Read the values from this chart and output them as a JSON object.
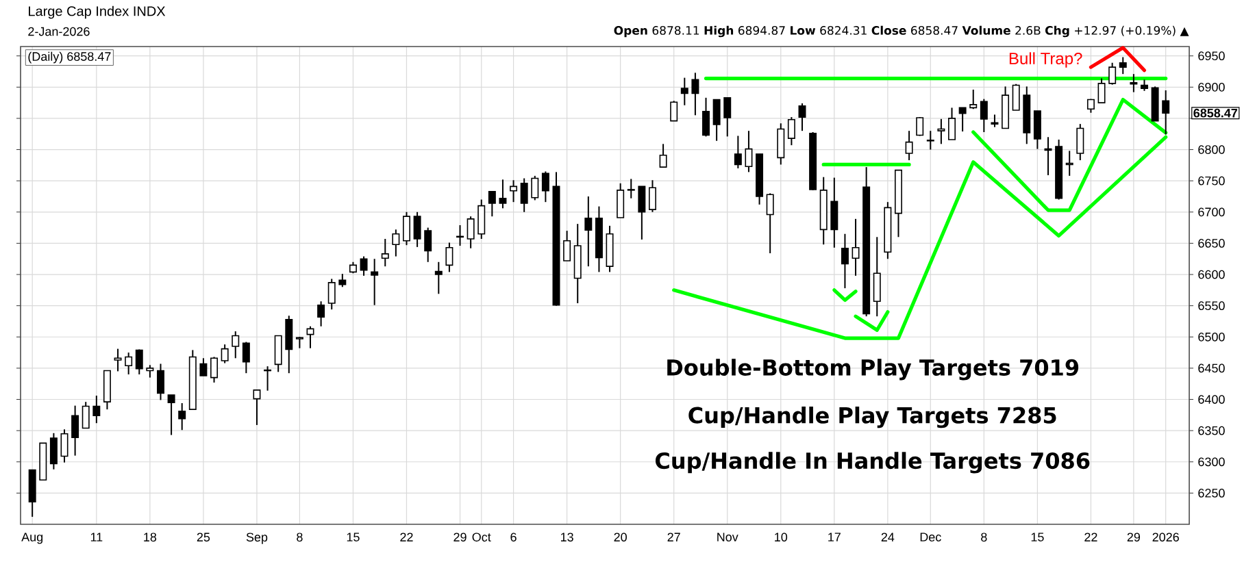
{
  "chart_data": {
    "type": "candlestick",
    "title": "Large Cap Index INDX",
    "subtitle": "2-Jan-2026",
    "annotations": [
      "**Open** 6878.11  **High** 6894.87  **Low** 6824.31  **Close** 6858.47  **Volume** 2.6B  **Chg** +12.97 (+0.19%) ▲",
      "(Daily) 6858.47",
      "6858.47",
      "Bull Trap?",
      "Double-Bottom Play Targets 7019",
      "Cup/Handle Play Targets 7285",
      "Cup/Handle In Handle Targets 7086"
    ],
    "categories": [
      "Aug",
      null,
      null,
      null,
      null,
      null,
      "11",
      null,
      null,
      null,
      null,
      "18",
      null,
      null,
      null,
      null,
      "25",
      null,
      null,
      null,
      null,
      "Sep",
      null,
      null,
      null,
      "8",
      null,
      null,
      null,
      null,
      "15",
      null,
      null,
      null,
      null,
      "22",
      null,
      null,
      null,
      null,
      "29",
      null,
      "Oct",
      null,
      null,
      "6",
      null,
      null,
      null,
      null,
      "13",
      null,
      null,
      null,
      null,
      "20",
      null,
      null,
      null,
      null,
      "27",
      null,
      null,
      null,
      null,
      "Nov",
      null,
      null,
      null,
      null,
      "10",
      null,
      null,
      null,
      null,
      "17",
      null,
      null,
      null,
      null,
      "24",
      null,
      null,
      null,
      "Dec",
      null,
      null,
      null,
      null,
      "8",
      null,
      null,
      null,
      null,
      "15",
      null,
      null,
      null,
      null,
      "22",
      null,
      null,
      null,
      "29",
      null,
      null,
      "2026"
    ],
    "color": "#000000",
    "ohlc": [
      [
        6287,
        6287,
        6212,
        6236
      ],
      [
        6271,
        6330,
        6271,
        6330
      ],
      [
        6338,
        6346,
        6288,
        6297
      ],
      [
        6309,
        6352,
        6299,
        6345
      ],
      [
        6374,
        6390,
        6310,
        6339
      ],
      [
        6354,
        6396,
        6354,
        6389
      ],
      [
        6389,
        6406,
        6362,
        6374
      ],
      [
        6396,
        6446,
        6384,
        6446
      ],
      [
        6463,
        6481,
        6445,
        6466
      ],
      [
        6454,
        6475,
        6440,
        6468
      ],
      [
        6479,
        6480,
        6440,
        6449
      ],
      [
        6446,
        6455,
        6435,
        6450
      ],
      [
        6446,
        6457,
        6399,
        6410
      ],
      [
        6407,
        6407,
        6343,
        6395
      ],
      [
        6381,
        6394,
        6351,
        6369
      ],
      [
        6384,
        6479,
        6384,
        6468
      ],
      [
        6457,
        6466,
        6438,
        6438
      ],
      [
        6435,
        6468,
        6427,
        6466
      ],
      [
        6462,
        6488,
        6458,
        6481
      ],
      [
        6485,
        6509,
        6466,
        6502
      ],
      [
        6490,
        6492,
        6442,
        6460
      ],
      [
        6401,
        6415,
        6359,
        6415
      ],
      [
        6446,
        6453,
        6414,
        6447
      ],
      [
        6456,
        6502,
        6444,
        6502
      ],
      [
        6528,
        6534,
        6442,
        6480
      ],
      [
        6497,
        6500,
        6482,
        6499
      ],
      [
        6504,
        6517,
        6482,
        6513
      ],
      [
        6551,
        6557,
        6517,
        6532
      ],
      [
        6554,
        6593,
        6544,
        6587
      ],
      [
        6591,
        6601,
        6580,
        6584
      ],
      [
        6604,
        6620,
        6602,
        6615
      ],
      [
        6625,
        6629,
        6598,
        6607
      ],
      [
        6604,
        6625,
        6551,
        6599
      ],
      [
        6626,
        6657,
        6613,
        6633
      ],
      [
        6648,
        6672,
        6629,
        6665
      ],
      [
        6654,
        6700,
        6647,
        6693
      ],
      [
        6693,
        6700,
        6644,
        6657
      ],
      [
        6670,
        6675,
        6620,
        6638
      ],
      [
        6605,
        6620,
        6569,
        6600
      ],
      [
        6615,
        6651,
        6604,
        6643
      ],
      [
        6660,
        6679,
        6646,
        6661
      ],
      [
        6657,
        6693,
        6642,
        6689
      ],
      [
        6665,
        6720,
        6657,
        6710
      ],
      [
        6733,
        6733,
        6693,
        6714
      ],
      [
        6722,
        6752,
        6706,
        6714
      ],
      [
        6734,
        6751,
        6716,
        6741
      ],
      [
        6746,
        6754,
        6700,
        6714
      ],
      [
        6723,
        6758,
        6719,
        6754
      ],
      [
        6762,
        6765,
        6716,
        6734
      ],
      [
        6741,
        6764,
        6550,
        6551
      ],
      [
        6622,
        6670,
        6622,
        6654
      ],
      [
        6594,
        6681,
        6554,
        6646
      ],
      [
        6690,
        6725,
        6613,
        6671
      ],
      [
        6690,
        6709,
        6604,
        6627
      ],
      [
        6613,
        6678,
        6604,
        6665
      ],
      [
        6691,
        6746,
        6691,
        6735
      ],
      [
        6735,
        6753,
        6722,
        6736
      ],
      [
        6741,
        6741,
        6656,
        6700
      ],
      [
        6704,
        6751,
        6700,
        6739
      ],
      [
        6772,
        6809,
        6772,
        6791
      ],
      [
        6846,
        6878,
        6846,
        6876
      ],
      [
        6898,
        6915,
        6871,
        6890
      ],
      [
        6912,
        6923,
        6855,
        6890
      ],
      [
        6861,
        6883,
        6821,
        6823
      ],
      [
        6880,
        6880,
        6814,
        6840
      ],
      [
        6883,
        6883,
        6821,
        6851
      ],
      [
        6793,
        6822,
        6770,
        6776
      ],
      [
        6773,
        6830,
        6764,
        6801
      ],
      [
        6793,
        6793,
        6712,
        6725
      ],
      [
        6696,
        6730,
        6634,
        6728
      ],
      [
        6787,
        6842,
        6776,
        6833
      ],
      [
        6818,
        6852,
        6807,
        6848
      ],
      [
        6870,
        6874,
        6830,
        6852
      ],
      [
        6826,
        6828,
        6735,
        6736
      ],
      [
        6672,
        6756,
        6648,
        6735
      ],
      [
        6717,
        6755,
        6643,
        6672
      ],
      [
        6642,
        6665,
        6578,
        6617
      ],
      [
        6626,
        6689,
        6598,
        6643
      ],
      [
        6740,
        6772,
        6533,
        6537
      ],
      [
        6557,
        6660,
        6533,
        6602
      ],
      [
        6636,
        6716,
        6625,
        6707
      ],
      [
        6698,
        6767,
        6660,
        6767
      ],
      [
        6794,
        6830,
        6783,
        6812
      ],
      [
        6823,
        6852,
        6822,
        6851
      ],
      [
        6815,
        6830,
        6800,
        6814
      ],
      [
        6830,
        6849,
        6809,
        6833
      ],
      [
        6816,
        6867,
        6816,
        6850
      ],
      [
        6867,
        6867,
        6829,
        6858
      ],
      [
        6867,
        6896,
        6865,
        6872
      ],
      [
        6877,
        6881,
        6828,
        6849
      ],
      [
        6843,
        6856,
        6836,
        6841
      ],
      [
        6834,
        6901,
        6834,
        6887
      ],
      [
        6863,
        6905,
        6863,
        6903
      ],
      [
        6887,
        6901,
        6809,
        6827
      ],
      [
        6862,
        6862,
        6801,
        6817
      ],
      [
        6801,
        6820,
        6759,
        6799
      ],
      [
        6805,
        6816,
        6720,
        6722
      ],
      [
        6776,
        6798,
        6758,
        6778
      ],
      [
        6794,
        6841,
        6783,
        6834
      ],
      [
        6865,
        6881,
        6859,
        6880
      ],
      [
        6875,
        6914,
        6875,
        6906
      ],
      [
        6906,
        6939,
        6904,
        6932
      ],
      [
        6939,
        6948,
        6921,
        6932
      ],
      [
        6907,
        6921,
        6892,
        6905
      ],
      [
        6903,
        6912,
        6894,
        6898
      ],
      [
        6899,
        6901,
        6846,
        6846
      ],
      [
        6878.11,
        6894.87,
        6824.31,
        6858.47
      ]
    ],
    "series": [
      {
        "type": "line",
        "color": "#00ff00",
        "values": [
          null,
          null,
          null,
          null,
          null,
          null,
          null,
          null,
          null,
          null,
          null,
          null,
          null,
          null,
          null,
          null,
          null,
          null,
          null,
          null,
          null,
          null,
          null,
          null,
          null,
          null,
          null,
          null,
          null,
          null,
          null,
          null,
          null,
          null,
          null,
          null,
          null,
          null,
          null,
          null,
          null,
          null,
          null,
          null,
          null,
          null,
          null,
          null,
          null,
          null,
          null,
          null,
          null,
          null,
          null,
          null,
          null,
          null,
          null,
          null,
          null,
          null,
          null,
          6914,
          null,
          null,
          null,
          null,
          null,
          null,
          null,
          null,
          null,
          null,
          null,
          null,
          null,
          null,
          null,
          null,
          null,
          null,
          null,
          null,
          null,
          null,
          null,
          null,
          null,
          null,
          null,
          null,
          null,
          null,
          null,
          null,
          null,
          null,
          null,
          null,
          null,
          null,
          null,
          null,
          null,
          null,
          6914
        ]
      },
      {
        "type": "line",
        "color": "#00ff00",
        "values": [
          null,
          null,
          null,
          null,
          null,
          null,
          null,
          null,
          null,
          null,
          null,
          null,
          null,
          null,
          null,
          null,
          null,
          null,
          null,
          null,
          null,
          null,
          null,
          null,
          null,
          null,
          null,
          null,
          null,
          null,
          null,
          null,
          null,
          null,
          null,
          null,
          null,
          null,
          null,
          null,
          null,
          null,
          null,
          null,
          null,
          null,
          null,
          null,
          null,
          null,
          null,
          null,
          null,
          null,
          null,
          null,
          null,
          null,
          null,
          null,
          6575,
          null,
          null,
          null,
          null,
          null,
          null,
          null,
          null,
          null,
          null,
          null,
          null,
          null,
          null,
          null,
          6498,
          null,
          null,
          null,
          null,
          6498,
          null,
          null,
          null,
          null,
          null,
          null,
          6780,
          null,
          null,
          null,
          null,
          null,
          null,
          null,
          6662,
          null,
          null,
          null,
          null,
          null,
          null,
          null,
          null,
          null,
          6820
        ]
      },
      {
        "type": "line",
        "color": "#00ff00",
        "values": [
          null,
          null,
          null,
          null,
          null,
          null,
          null,
          null,
          null,
          null,
          null,
          null,
          null,
          null,
          null,
          null,
          null,
          null,
          null,
          null,
          null,
          null,
          null,
          null,
          null,
          null,
          null,
          null,
          null,
          null,
          null,
          null,
          null,
          null,
          null,
          null,
          null,
          null,
          null,
          null,
          null,
          null,
          null,
          null,
          null,
          null,
          null,
          null,
          null,
          null,
          null,
          null,
          null,
          null,
          null,
          null,
          null,
          null,
          null,
          null,
          null,
          null,
          null,
          null,
          null,
          null,
          null,
          null,
          null,
          null,
          null,
          null,
          null,
          null,
          null,
          null,
          null,
          null,
          null,
          null,
          null,
          null,
          null,
          null,
          null,
          null,
          null,
          null,
          6828,
          null,
          null,
          null,
          null,
          null,
          null,
          6703,
          null,
          6703,
          null,
          null,
          null,
          null,
          6880,
          null,
          null,
          null,
          6827
        ]
      },
      {
        "type": "line",
        "color": "#00ff00",
        "values": [
          null,
          null,
          null,
          null,
          null,
          null,
          null,
          null,
          null,
          null,
          null,
          null,
          null,
          null,
          null,
          null,
          null,
          null,
          null,
          null,
          null,
          null,
          null,
          null,
          null,
          null,
          null,
          null,
          null,
          null,
          null,
          null,
          null,
          null,
          null,
          null,
          null,
          null,
          null,
          null,
          null,
          null,
          null,
          null,
          null,
          null,
          null,
          null,
          null,
          null,
          null,
          null,
          null,
          null,
          null,
          null,
          null,
          null,
          null,
          null,
          null,
          null,
          null,
          null,
          null,
          null,
          null,
          null,
          null,
          null,
          null,
          null,
          null,
          null,
          6776,
          null,
          null,
          null,
          null,
          null,
          null,
          null,
          6776,
          null,
          null,
          null,
          null,
          null,
          null,
          null,
          null,
          null,
          null,
          null,
          null,
          null,
          null,
          null,
          null,
          null,
          null,
          null,
          null,
          null,
          null,
          null,
          null
        ]
      },
      {
        "type": "line",
        "color": "#00ff00",
        "values": [
          null,
          null,
          null,
          null,
          null,
          null,
          null,
          null,
          null,
          null,
          null,
          null,
          null,
          null,
          null,
          null,
          null,
          null,
          null,
          null,
          null,
          null,
          null,
          null,
          null,
          null,
          null,
          null,
          null,
          null,
          null,
          null,
          null,
          null,
          null,
          null,
          null,
          null,
          null,
          null,
          null,
          null,
          null,
          null,
          null,
          null,
          null,
          null,
          null,
          null,
          null,
          null,
          null,
          null,
          null,
          null,
          null,
          null,
          null,
          null,
          null,
          null,
          null,
          null,
          null,
          null,
          null,
          null,
          null,
          null,
          null,
          null,
          null,
          null,
          null,
          6575,
          6559,
          6573,
          null,
          null,
          null,
          null,
          null,
          null,
          null,
          null,
          null,
          null,
          null,
          null,
          null,
          null,
          null,
          null,
          null,
          null,
          null,
          null,
          null,
          null,
          null,
          null,
          null,
          null,
          null,
          null,
          null
        ]
      },
      {
        "type": "line",
        "color": "#00ff00",
        "values": [
          null,
          null,
          null,
          null,
          null,
          null,
          null,
          null,
          null,
          null,
          null,
          null,
          null,
          null,
          null,
          null,
          null,
          null,
          null,
          null,
          null,
          null,
          null,
          null,
          null,
          null,
          null,
          null,
          null,
          null,
          null,
          null,
          null,
          null,
          null,
          null,
          null,
          null,
          null,
          null,
          null,
          null,
          null,
          null,
          null,
          null,
          null,
          null,
          null,
          null,
          null,
          null,
          null,
          null,
          null,
          null,
          null,
          null,
          null,
          null,
          null,
          null,
          null,
          null,
          null,
          null,
          null,
          null,
          null,
          null,
          null,
          null,
          null,
          null,
          null,
          null,
          null,
          6533,
          null,
          6511,
          6540,
          null,
          null,
          null,
          null,
          null,
          null,
          null,
          null,
          null,
          null,
          null,
          null,
          null,
          null,
          null,
          null,
          null,
          null,
          null,
          null,
          null,
          null,
          null,
          null,
          null,
          null
        ]
      },
      {
        "type": "line",
        "color": "#ff0000",
        "values": [
          null,
          null,
          null,
          null,
          null,
          null,
          null,
          null,
          null,
          null,
          null,
          null,
          null,
          null,
          null,
          null,
          null,
          null,
          null,
          null,
          null,
          null,
          null,
          null,
          null,
          null,
          null,
          null,
          null,
          null,
          null,
          null,
          null,
          null,
          null,
          null,
          null,
          null,
          null,
          null,
          null,
          null,
          null,
          null,
          null,
          null,
          null,
          null,
          null,
          null,
          null,
          null,
          null,
          null,
          null,
          null,
          null,
          null,
          null,
          null,
          null,
          null,
          null,
          null,
          null,
          null,
          null,
          null,
          null,
          null,
          null,
          null,
          null,
          null,
          null,
          null,
          null,
          null,
          null,
          null,
          null,
          null,
          null,
          null,
          null,
          null,
          null,
          null,
          null,
          null,
          null,
          null,
          null,
          null,
          null,
          null,
          null,
          null,
          null,
          6932,
          null,
          null,
          6963,
          null,
          6927,
          null,
          null
        ]
      }
    ],
    "ylim": [
      6200,
      6965
    ],
    "yticks": [
      6250,
      6300,
      6350,
      6400,
      6450,
      6500,
      6550,
      6600,
      6650,
      6700,
      6750,
      6800,
      {
        "value": 6850,
        "label": null
      },
      6900,
      6950
    ],
    "grid": true
  }
}
